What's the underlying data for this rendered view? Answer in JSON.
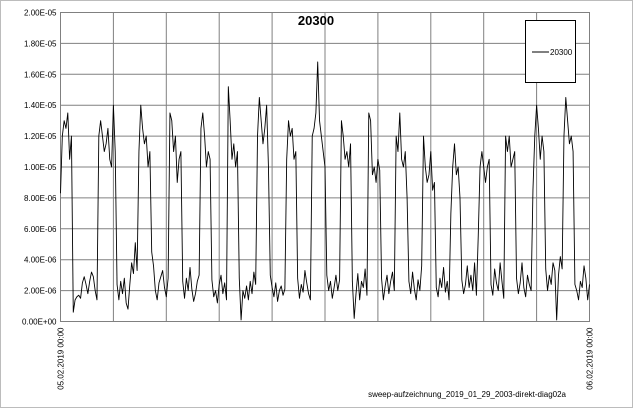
{
  "chart_data": {
    "type": "line",
    "title": "20300",
    "xlabel": "sweep-aufzeichnung_2019_01_29_2003-direkt-diag02a",
    "ylabel": "",
    "ylim": [
      0,
      2e-05
    ],
    "y_ticks": [
      "0.00E+00",
      "2.00E-06",
      "4.00E-06",
      "6.00E-06",
      "8.00E-06",
      "1.00E-05",
      "1.20E-05",
      "1.40E-05",
      "1.60E-05",
      "1.80E-05",
      "2.00E-05"
    ],
    "x_ticks": [
      "05.02.2019 00:00",
      "06.02.2019 00:00"
    ],
    "grid": true,
    "legend_position": "top-right",
    "series": [
      {
        "name": "20300",
        "color": "#000000",
        "values": [
          8.3e-06,
          1.2e-05,
          1.3e-05,
          1.25e-05,
          1.35e-05,
          1.05e-05,
          1.2e-05,
          6e-07,
          1.4e-06,
          1.6e-06,
          1.7e-06,
          1.5e-06,
          2.5e-06,
          2.9e-06,
          2.4e-06,
          1.8e-06,
          2.6e-06,
          3.2e-06,
          2.9e-06,
          2e-06,
          1.4e-06,
          1.2e-05,
          1.3e-05,
          1.2e-05,
          1.1e-05,
          1.15e-05,
          1.25e-05,
          1.05e-05,
          1e-05,
          1.4e-05,
          1.1e-05,
          2.4e-06,
          1.4e-06,
          2.6e-06,
          1.8e-06,
          2.8e-06,
          1.2e-06,
          8e-07,
          2.4e-06,
          3.8e-06,
          3.1e-06,
          5.1e-06,
          3.3e-06,
          1.1e-05,
          1.4e-05,
          1.25e-05,
          1.15e-05,
          1.2e-05,
          1e-05,
          1.1e-05,
          4.5e-06,
          3.6e-06,
          2e-06,
          1.4e-06,
          2.5e-06,
          2.9e-06,
          3.3e-06,
          2.2e-06,
          1.6e-06,
          2.8e-06,
          1.35e-05,
          1.3e-05,
          1.1e-05,
          1.2e-05,
          9e-06,
          1.05e-05,
          1.1e-05,
          2.6e-06,
          1.5e-06,
          2.8e-06,
          2e-06,
          3.5e-06,
          2.1e-06,
          1.3e-06,
          1.8e-06,
          2.6e-06,
          3e-06,
          1.25e-05,
          1.35e-05,
          1.2e-05,
          1e-05,
          1.1e-05,
          1.05e-05,
          2.7e-06,
          1.6e-06,
          2e-06,
          1.2e-06,
          2.4e-06,
          3e-06,
          1.8e-06,
          2.5e-06,
          1.4e-06,
          1.52e-05,
          1.3e-05,
          1.05e-05,
          1.15e-05,
          1e-05,
          1.1e-05,
          2.8e-06,
          1e-07,
          2e-06,
          1.5e-06,
          2.3e-06,
          1.4e-06,
          2.6e-06,
          1.8e-06,
          3.2e-06,
          2.4e-06,
          1.2e-05,
          1.45e-05,
          1.3e-05,
          1.15e-05,
          1.25e-05,
          1.4e-05,
          1e-05,
          3e-06,
          2.2e-06,
          1.6e-06,
          2.5e-06,
          1.3e-06,
          2e-06,
          2.3e-06,
          1.7e-06,
          2.1e-06,
          1.05e-05,
          1.3e-05,
          1.2e-05,
          1.25e-05,
          1.05e-05,
          1.1e-05,
          2.8e-06,
          1.5e-06,
          2.4e-06,
          1.9e-06,
          3.3e-06,
          2.5e-06,
          1.8e-06,
          1.4e-06,
          1.2e-05,
          1.25e-05,
          1.35e-05,
          1.68e-05,
          1.3e-05,
          1.2e-05,
          1.1e-05,
          1e-05,
          3e-06,
          2e-06,
          2.6e-06,
          1.5e-06,
          2.2e-06,
          3e-06,
          2e-06,
          2.7e-06,
          1.3e-05,
          1.2e-05,
          1.05e-05,
          1.1e-05,
          1e-05,
          1.15e-05,
          2.6e-06,
          2e-07,
          1.8e-06,
          3.1e-06,
          1.4e-06,
          2.6e-06,
          2.2e-06,
          3.4e-06,
          1.7e-06,
          1.35e-05,
          1.3e-05,
          9.5e-06,
          1e-05,
          9e-06,
          1.05e-05,
          9.8e-06,
          2.8e-06,
          1.4e-06,
          2.3e-06,
          3e-06,
          1.8e-06,
          2.6e-06,
          3.2e-06,
          2e-06,
          1.2e-05,
          1.1e-05,
          1.35e-05,
          1.05e-05,
          1e-05,
          1.1e-05,
          8e-06,
          2.6e-06,
          1.8e-06,
          3.2e-06,
          2.1e-06,
          1.4e-06,
          2.7e-06,
          2e-06,
          3.6e-06,
          1.2e-05,
          1e-05,
          9e-06,
          9.5e-06,
          1.1e-05,
          8.5e-06,
          9e-06,
          2.2e-06,
          1.6e-06,
          2.8e-06,
          2.2e-06,
          3.5e-06,
          1.9e-06,
          2.6e-06,
          1.4e-06,
          7e-06,
          1e-05,
          1.15e-05,
          9.5e-06,
          1e-05,
          8e-06,
          2.7e-06,
          1.8e-06,
          2.4e-06,
          3.6e-06,
          2.2e-06,
          3e-06,
          2e-06,
          3.8e-06,
          1.7e-06,
          5.5e-06,
          1e-05,
          1.1e-05,
          1e-05,
          9e-06,
          1e-05,
          1.05e-05,
          2.4e-06,
          1.7e-06,
          3.4e-06,
          2.5e-06,
          2e-06,
          3.8e-06,
          2.6e-06,
          1.5e-06,
          1.2e-05,
          1.1e-05,
          1.2e-05,
          1e-05,
          1.05e-05,
          1.1e-05,
          2.8e-06,
          1.8e-06,
          2.5e-06,
          3.8e-06,
          2.2e-06,
          1.6e-06,
          3e-06,
          2.4e-06,
          2e-06,
          8.5e-06,
          1.2e-05,
          1.4e-05,
          1.25e-05,
          1.05e-05,
          1.2e-05,
          1.1e-05,
          3.4e-06,
          2e-06,
          3e-06,
          2.4e-06,
          3.8e-06,
          3.3e-06,
          1e-07,
          3e-06,
          4.2e-06,
          3.4e-06,
          1.2e-05,
          1.45e-05,
          1.3e-05,
          1.15e-05,
          1.2e-05,
          1.1e-05,
          2.4e-06,
          2e-06,
          1.4e-06,
          2.6e-06,
          2.2e-06,
          3.6e-06,
          2.8e-06,
          1.4e-06,
          2.4e-06
        ]
      }
    ]
  }
}
